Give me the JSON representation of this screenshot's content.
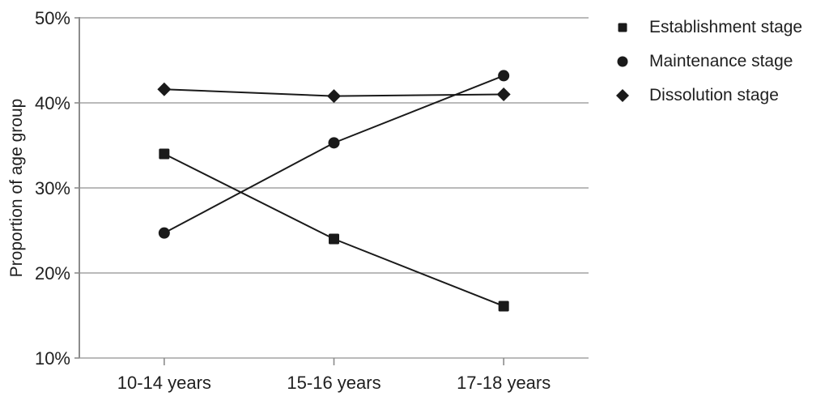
{
  "colors": {
    "series": "#1a1a1a",
    "grid": "#a3a3a3",
    "axis": "#8c8c8c",
    "text": "#1f1f1f",
    "background": "#ffffff"
  },
  "chart_data": {
    "type": "line",
    "title": "",
    "categories": [
      "10-14 years",
      "15-16 years",
      "17-18 years"
    ],
    "series": [
      {
        "name": "Establishment stage",
        "marker": "square",
        "values": [
          34.0,
          24.0,
          16.1
        ]
      },
      {
        "name": "Maintenance stage",
        "marker": "circle",
        "values": [
          24.7,
          35.3,
          43.2
        ]
      },
      {
        "name": "Dissolution stage",
        "marker": "diamond",
        "values": [
          41.6,
          40.8,
          41.0
        ]
      }
    ],
    "xlabel": "",
    "ylabel": "Proportion of age group",
    "ylim": [
      10,
      50
    ],
    "yticks": [
      10,
      20,
      30,
      40,
      50
    ],
    "ytick_suffix": "%",
    "grid": "horizontal",
    "legend_position": "top-right"
  }
}
